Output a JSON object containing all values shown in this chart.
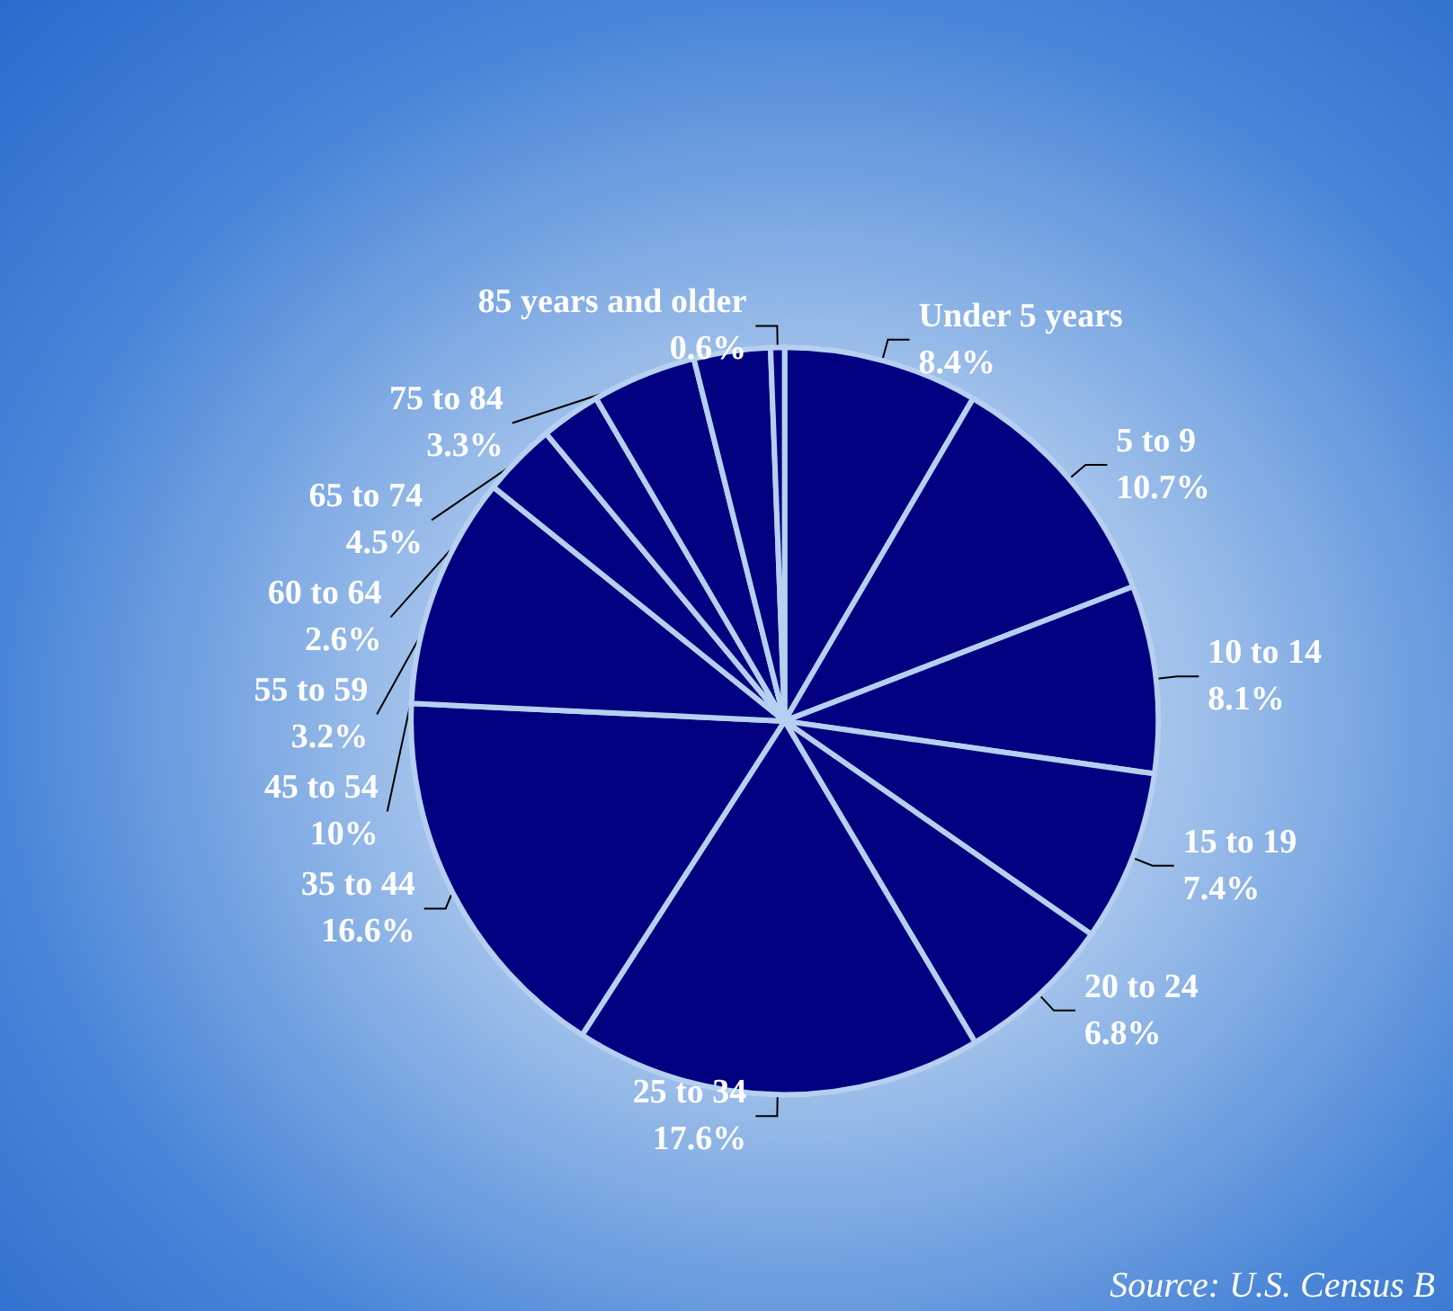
{
  "chart_data": {
    "type": "pie",
    "categories": [
      "Under 5 years",
      "5 to 9",
      "10 to 14",
      "15 to 19",
      "20 to 24",
      "25 to 34",
      "35 to 44",
      "45 to 54",
      "55 to 59",
      "60 to 64",
      "65 to 74",
      "75 to 84",
      "85 years and older"
    ],
    "values": [
      8.4,
      10.7,
      8.1,
      7.4,
      6.8,
      17.6,
      16.6,
      10,
      3.2,
      2.6,
      4.5,
      3.3,
      0.6
    ],
    "value_labels": [
      "8.4%",
      "10.7%",
      "8.1%",
      "7.4%",
      "6.8%",
      "17.6%",
      "16.6%",
      "10%",
      "3.2%",
      "2.6%",
      "4.5%",
      "3.3%",
      "0.6%"
    ],
    "colors": [
      "#000080",
      "#000080",
      "#000080",
      "#000080",
      "#000080",
      "#000080",
      "#000080",
      "#000080",
      "#000080",
      "#000080",
      "#000080",
      "#000080",
      "#000080"
    ],
    "data_labels": true,
    "legend": false,
    "annotations": [
      "Source: U.S. Census B"
    ]
  }
}
